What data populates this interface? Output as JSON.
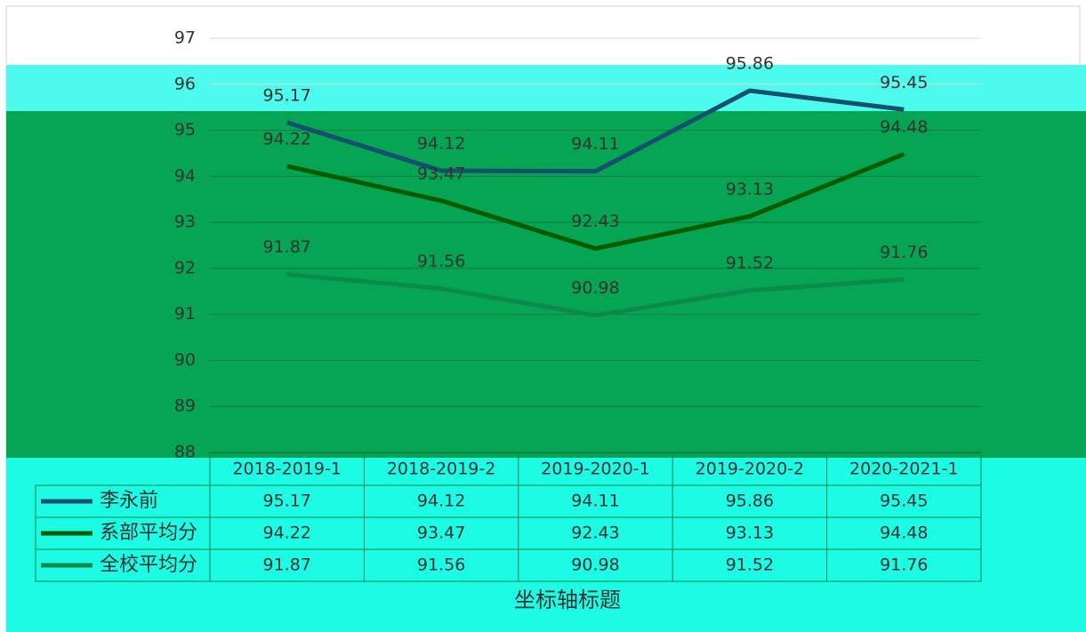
{
  "chart_data": {
    "type": "line",
    "x_axis_title": "坐标轴标题",
    "categories": [
      "2018-2019-1",
      "2018-2019-2",
      "2019-2020-1",
      "2019-2020-2",
      "2020-2021-1"
    ],
    "series": [
      {
        "name": "李永前",
        "color": "#15506e",
        "values": [
          95.17,
          94.12,
          94.11,
          95.86,
          95.45
        ]
      },
      {
        "name": "系部平均分",
        "color": "#005a00",
        "values": [
          94.22,
          93.47,
          92.43,
          93.13,
          94.48
        ]
      },
      {
        "name": "全校平均分",
        "color": "#0b8a4c",
        "values": [
          91.87,
          91.56,
          90.98,
          91.52,
          91.76
        ]
      }
    ],
    "ylim": [
      88,
      97
    ],
    "yticks": [
      88,
      89,
      90,
      91,
      92,
      93,
      94,
      95,
      96,
      97
    ],
    "grid": true,
    "data_table": true
  }
}
